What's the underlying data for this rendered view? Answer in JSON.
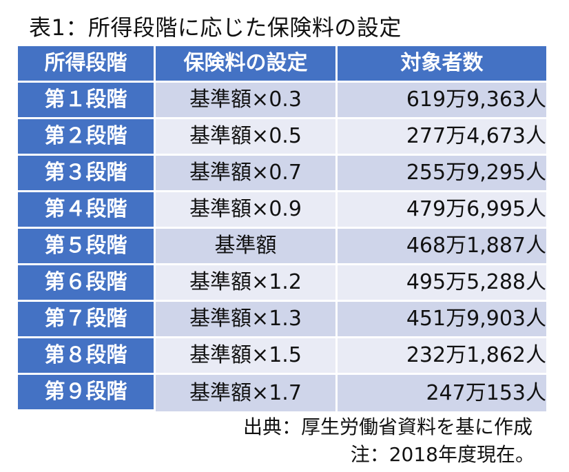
{
  "title": "表1：所得段階に応じた保険料の設定",
  "table": {
    "headers": [
      "所得段階",
      "保険料の設定",
      "対象者数"
    ],
    "rows": [
      {
        "stage": "第１段階",
        "setting": "基準額×0.3",
        "count": "619万9,363人"
      },
      {
        "stage": "第２段階",
        "setting": "基準額×0.5",
        "count": "277万4,673人"
      },
      {
        "stage": "第３段階",
        "setting": "基準額×0.7",
        "count": "255万9,295人"
      },
      {
        "stage": "第４段階",
        "setting": "基準額×0.9",
        "count": "479万6,995人"
      },
      {
        "stage": "第５段階",
        "setting": "基準額",
        "count": "468万1,887人"
      },
      {
        "stage": "第６段階",
        "setting": "基準額×1.2",
        "count": "495万5,288人"
      },
      {
        "stage": "第７段階",
        "setting": "基準額×1.3",
        "count": "451万9,903人"
      },
      {
        "stage": "第８段階",
        "setting": "基準額×1.5",
        "count": "232万1,862人"
      },
      {
        "stage": "第９段階",
        "setting": "基準額×1.7",
        "count": "247万153人"
      }
    ]
  },
  "notes": {
    "source": "出典：厚生労働省資料を基に作成",
    "footnote": "注：2018年度現在。"
  },
  "colors": {
    "header_bg": "#4472c4",
    "row_odd_bg": "#cfd5ea",
    "row_even_bg": "#e9ebf5"
  }
}
